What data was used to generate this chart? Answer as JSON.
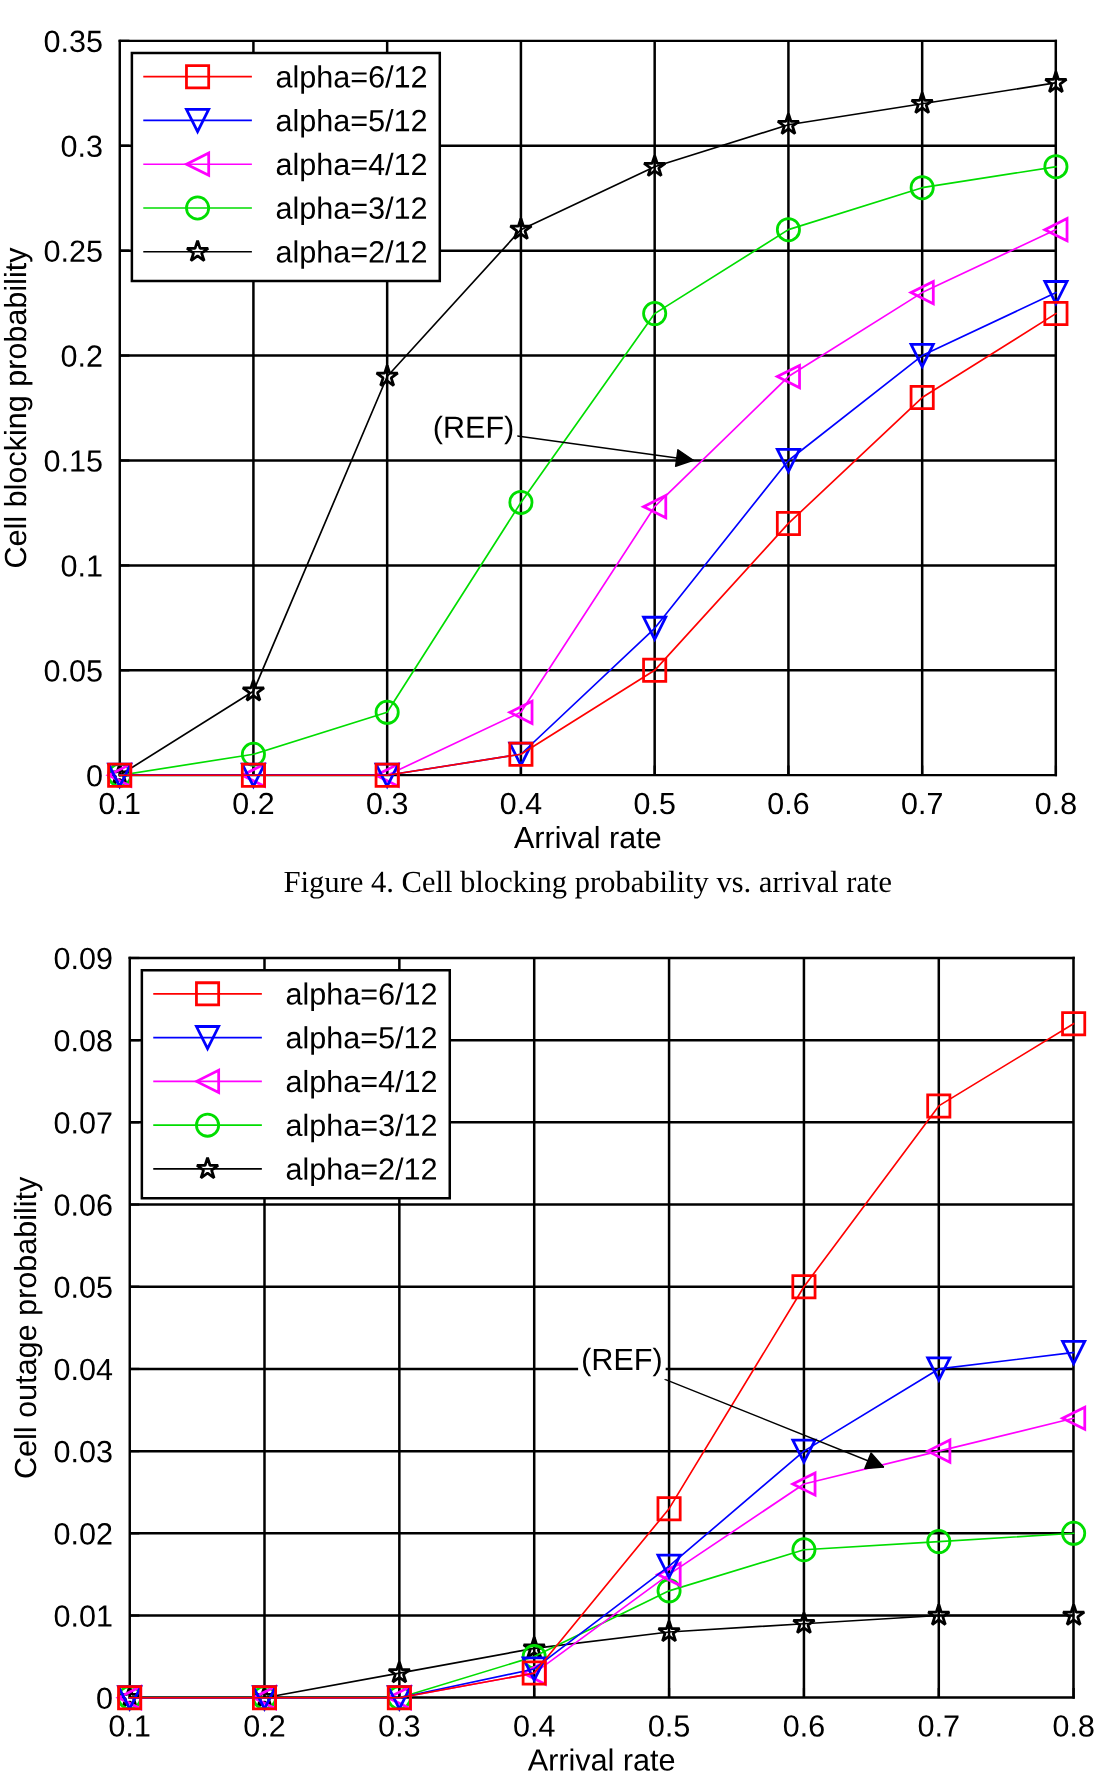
{
  "chart_data": [
    {
      "type": "line",
      "xlabel": "Arrival rate",
      "ylabel": "Cell blocking probability",
      "x": [
        0.1,
        0.2,
        0.3,
        0.4,
        0.5,
        0.6,
        0.7,
        0.8
      ],
      "series": [
        {
          "name": "alpha=6/12",
          "color": "#ff0000",
          "marker": "square",
          "values": [
            0,
            0,
            0,
            0.01,
            0.05,
            0.12,
            0.18,
            0.22
          ]
        },
        {
          "name": "alpha=5/12",
          "color": "#0000ff",
          "marker": "triangle-down",
          "values": [
            0,
            0,
            0,
            0.01,
            0.07,
            0.15,
            0.2,
            0.23
          ]
        },
        {
          "name": "alpha=4/12",
          "color": "#ff00ff",
          "marker": "triangle-left",
          "values": [
            0,
            0,
            0,
            0.03,
            0.128,
            0.19,
            0.23,
            0.26
          ]
        },
        {
          "name": "alpha=3/12",
          "color": "#00dd00",
          "marker": "circle",
          "values": [
            0,
            0.01,
            0.03,
            0.13,
            0.22,
            0.26,
            0.28,
            0.29
          ]
        },
        {
          "name": "alpha=2/12",
          "color": "#000000",
          "marker": "star",
          "values": [
            0,
            0.04,
            0.19,
            0.26,
            0.29,
            0.31,
            0.32,
            0.33
          ]
        }
      ],
      "xlim": [
        0.1,
        0.8
      ],
      "xticks": [
        0.1,
        0.2,
        0.3,
        0.4,
        0.5,
        0.6,
        0.7,
        0.8
      ],
      "ylim": [
        0,
        0.35
      ],
      "yticks": [
        0,
        0.05,
        0.1,
        0.15,
        0.2,
        0.25,
        0.3,
        0.35
      ],
      "grid": true,
      "legend": "top left",
      "annotations": [
        {
          "text": "(REF)",
          "x": 0.53,
          "y": 0.15
        },
        "Figure 4. Cell blocking probability vs. arrival rate"
      ]
    },
    {
      "type": "line",
      "xlabel": "Arrival rate",
      "ylabel": "Cell outage probability",
      "x": [
        0.1,
        0.2,
        0.3,
        0.4,
        0.5,
        0.6,
        0.7,
        0.8
      ],
      "series": [
        {
          "name": "alpha=6/12",
          "color": "#ff0000",
          "marker": "square",
          "values": [
            0,
            0,
            0,
            0.003,
            0.023,
            0.05,
            0.072,
            0.082
          ]
        },
        {
          "name": "alpha=5/12",
          "color": "#0000ff",
          "marker": "triangle-down",
          "values": [
            0,
            0,
            0,
            0.0035,
            0.016,
            0.03,
            0.04,
            0.042
          ]
        },
        {
          "name": "alpha=4/12",
          "color": "#ff00ff",
          "marker": "triangle-left",
          "values": [
            0,
            0,
            0,
            0.003,
            0.015,
            0.026,
            0.03,
            0.034
          ]
        },
        {
          "name": "alpha=3/12",
          "color": "#00dd00",
          "marker": "circle",
          "values": [
            0,
            0,
            0,
            0.005,
            0.013,
            0.018,
            0.019,
            0.02
          ]
        },
        {
          "name": "alpha=2/12",
          "color": "#000000",
          "marker": "star",
          "values": [
            0,
            0,
            0.003,
            0.006,
            0.008,
            0.009,
            0.01,
            0.01
          ]
        }
      ],
      "xlim": [
        0.1,
        0.8
      ],
      "xticks": [
        0.1,
        0.2,
        0.3,
        0.4,
        0.5,
        0.6,
        0.7,
        0.8
      ],
      "ylim": [
        0,
        0.09
      ],
      "yticks": [
        0,
        0.01,
        0.02,
        0.03,
        0.04,
        0.05,
        0.06,
        0.07,
        0.08,
        0.09
      ],
      "grid": true,
      "legend": "top left",
      "annotations": [
        {
          "text": "(REF)",
          "x": 0.66,
          "y": 0.028
        }
      ]
    }
  ]
}
